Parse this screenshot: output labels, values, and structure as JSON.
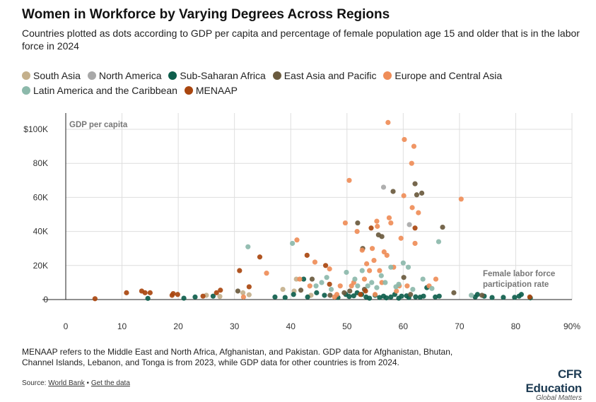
{
  "title": "Women in Workforce by Varying Degrees Across Regions",
  "subtitle": "Countries plotted as dots according to GDP per capita and percentage of female population age 15 and older that is in the labor force in 2024",
  "legend": [
    {
      "name": "South Asia",
      "color": "#c4b08c"
    },
    {
      "name": "North America",
      "color": "#a8a8a8"
    },
    {
      "name": "Sub-Saharan Africa",
      "color": "#0e5e4c"
    },
    {
      "name": "East Asia and Pacific",
      "color": "#6a5a3e"
    },
    {
      "name": "Europe and Central Asia",
      "color": "#ef8d58"
    },
    {
      "name": "Latin America and the Caribbean",
      "color": "#8cb9ab"
    },
    {
      "name": "MENAAP",
      "color": "#a9460f"
    }
  ],
  "footnote": "MENAAP refers to the Middle East and North Africa, Afghanistan, and Pakistan. GDP data for Afghanistan, Bhutan, Channel Islands, Lebanon, and Tonga is from 2023, while GDP data for other countries is from 2024.",
  "source": {
    "label": "Source:",
    "link1": "World Bank",
    "sep": "•",
    "link2": "Get the data"
  },
  "brand": {
    "name": "CFR Education",
    "tagline": "Global Matters"
  },
  "chart_data": {
    "type": "scatter",
    "ylabel": "GDP per capita",
    "xlabel": "Female labor force participation rate",
    "xlim": [
      0,
      90
    ],
    "ylim": [
      0,
      105000
    ],
    "xticks": [
      {
        "v": 0,
        "label": "0"
      },
      {
        "v": 10,
        "label": "10"
      },
      {
        "v": 20,
        "label": "20"
      },
      {
        "v": 30,
        "label": "30"
      },
      {
        "v": 40,
        "label": "40"
      },
      {
        "v": 50,
        "label": "50"
      },
      {
        "v": 60,
        "label": "60"
      },
      {
        "v": 70,
        "label": "70"
      },
      {
        "v": 80,
        "label": "80"
      },
      {
        "v": 90,
        "label": "90%"
      }
    ],
    "yticks": [
      {
        "v": 0,
        "label": "0"
      },
      {
        "v": 20000,
        "label": "20K"
      },
      {
        "v": 40000,
        "label": "40K"
      },
      {
        "v": 60000,
        "label": "60K"
      },
      {
        "v": 80000,
        "label": "80K"
      },
      {
        "v": 100000,
        "label": "$100K"
      }
    ],
    "series": [
      {
        "name": "South Asia",
        "color": "#c4b08c",
        "points": [
          [
            31.5,
            4000
          ],
          [
            32.6,
            2800
          ],
          [
            25,
            2500
          ],
          [
            27.4,
            1800
          ],
          [
            38.6,
            6000
          ],
          [
            40.6,
            5000
          ],
          [
            41,
            12000
          ],
          [
            43.6,
            2500
          ]
        ]
      },
      {
        "name": "North America",
        "color": "#a8a8a8",
        "points": [
          [
            56.5,
            66000
          ],
          [
            61.1,
            44000
          ]
        ]
      },
      {
        "name": "Sub-Saharan Africa",
        "color": "#0e5e4c",
        "points": [
          [
            14.6,
            700
          ],
          [
            21,
            800
          ],
          [
            23,
            1500
          ],
          [
            26.2,
            2000
          ],
          [
            37.2,
            1500
          ],
          [
            39,
            1200
          ],
          [
            40.5,
            3000
          ],
          [
            42.3,
            12000
          ],
          [
            43,
            1500
          ],
          [
            44.6,
            4000
          ],
          [
            46,
            2500
          ],
          [
            48.4,
            1200
          ],
          [
            49.8,
            3000
          ],
          [
            50.4,
            1800
          ],
          [
            51.2,
            2200
          ],
          [
            51.8,
            4000
          ],
          [
            52.6,
            3000
          ],
          [
            53.4,
            1500
          ],
          [
            54,
            800
          ],
          [
            55,
            2500
          ],
          [
            55.8,
            1200
          ],
          [
            56.5,
            2000
          ],
          [
            57,
            1000
          ],
          [
            57.8,
            1500
          ],
          [
            58.5,
            3000
          ],
          [
            59.2,
            800
          ],
          [
            59.7,
            2000
          ],
          [
            60.6,
            2200
          ],
          [
            61,
            1200
          ],
          [
            62.2,
            1600
          ],
          [
            63,
            1400
          ],
          [
            63.6,
            2000
          ],
          [
            64.2,
            7000
          ],
          [
            65.7,
            1500
          ],
          [
            66.4,
            2000
          ],
          [
            72.8,
            1500
          ],
          [
            73.2,
            3000
          ],
          [
            74.4,
            2000
          ],
          [
            75.8,
            1200
          ],
          [
            77.8,
            1300
          ],
          [
            79.8,
            1300
          ],
          [
            80.6,
            2000
          ],
          [
            81,
            3000
          ],
          [
            82.6,
            1000
          ]
        ]
      },
      {
        "name": "East Asia and Pacific",
        "color": "#6a5a3e",
        "points": [
          [
            30.6,
            5000
          ],
          [
            41.8,
            5500
          ],
          [
            43.8,
            12000
          ],
          [
            47,
            2500
          ],
          [
            49.5,
            4000
          ],
          [
            50.5,
            5000
          ],
          [
            51.9,
            45000
          ],
          [
            52.8,
            30000
          ],
          [
            53.1,
            6000
          ],
          [
            55.6,
            38000
          ],
          [
            56.2,
            37000
          ],
          [
            58.2,
            63500
          ],
          [
            60.1,
            13000
          ],
          [
            61.3,
            3000
          ],
          [
            62.1,
            68000
          ],
          [
            62.4,
            61500
          ],
          [
            63.3,
            62500
          ],
          [
            67,
            42500
          ],
          [
            69,
            4000
          ],
          [
            74,
            2500
          ]
        ]
      },
      {
        "name": "Europe and Central Asia",
        "color": "#ef8d58",
        "points": [
          [
            31.6,
            1500
          ],
          [
            35.7,
            15500
          ],
          [
            41.1,
            35000
          ],
          [
            41.6,
            12000
          ],
          [
            43.4,
            8000
          ],
          [
            44.3,
            22000
          ],
          [
            46.9,
            18000
          ],
          [
            47.8,
            1500
          ],
          [
            48.2,
            3000
          ],
          [
            48.8,
            8000
          ],
          [
            49.7,
            45000
          ],
          [
            50.4,
            70000
          ],
          [
            50.8,
            8000
          ],
          [
            51.2,
            10000
          ],
          [
            51.8,
            40000
          ],
          [
            52.7,
            29000
          ],
          [
            53.1,
            12000
          ],
          [
            53.5,
            21000
          ],
          [
            54,
            17000
          ],
          [
            54.5,
            30000
          ],
          [
            54.8,
            23000
          ],
          [
            55,
            3000
          ],
          [
            55.3,
            46000
          ],
          [
            55.4,
            43000
          ],
          [
            55.8,
            17000
          ],
          [
            56.2,
            10000
          ],
          [
            56.6,
            28000
          ],
          [
            57.1,
            26000
          ],
          [
            57.3,
            104000
          ],
          [
            57.5,
            48000
          ],
          [
            57.8,
            45000
          ],
          [
            58.3,
            19000
          ],
          [
            58.8,
            5000
          ],
          [
            59.3,
            8000
          ],
          [
            59.6,
            36000
          ],
          [
            60.1,
            61000
          ],
          [
            60.2,
            94000
          ],
          [
            60.7,
            8000
          ],
          [
            61.5,
            80000
          ],
          [
            61.6,
            54000
          ],
          [
            61.9,
            90000
          ],
          [
            62.1,
            33000
          ],
          [
            62.7,
            51000
          ],
          [
            64.6,
            8000
          ],
          [
            65.8,
            12000
          ],
          [
            70.3,
            59000
          ]
        ]
      },
      {
        "name": "Latin America and the Caribbean",
        "color": "#8cb9ab",
        "points": [
          [
            32.4,
            31000
          ],
          [
            40.3,
            33000
          ],
          [
            44.5,
            8000
          ],
          [
            45.5,
            10000
          ],
          [
            46.4,
            13000
          ],
          [
            47.2,
            6000
          ],
          [
            49.9,
            16000
          ],
          [
            51.4,
            12000
          ],
          [
            51.9,
            8000
          ],
          [
            52.7,
            17000
          ],
          [
            53.7,
            8000
          ],
          [
            54.4,
            10000
          ],
          [
            55.3,
            7000
          ],
          [
            56.1,
            14000
          ],
          [
            56.8,
            10000
          ],
          [
            57.8,
            19000
          ],
          [
            58.7,
            7500
          ],
          [
            59.2,
            9000
          ],
          [
            60,
            21500
          ],
          [
            60.9,
            19000
          ],
          [
            61.7,
            6000
          ],
          [
            63.5,
            12000
          ],
          [
            65.1,
            6500
          ],
          [
            66.3,
            34000
          ],
          [
            72.1,
            2500
          ]
        ]
      },
      {
        "name": "MENAAP",
        "color": "#a9460f",
        "points": [
          [
            5.2,
            500
          ],
          [
            10.8,
            4000
          ],
          [
            13.5,
            5000
          ],
          [
            14.1,
            4000
          ],
          [
            15,
            4000
          ],
          [
            18.9,
            2500
          ],
          [
            19.1,
            3500
          ],
          [
            19.9,
            3000
          ],
          [
            24.4,
            2000
          ],
          [
            26.8,
            4000
          ],
          [
            27.5,
            5500
          ],
          [
            30.9,
            17000
          ],
          [
            32.6,
            7500
          ],
          [
            34.5,
            25000
          ],
          [
            42.9,
            26000
          ],
          [
            46.2,
            20000
          ],
          [
            46.9,
            9000
          ],
          [
            52.4,
            3000
          ],
          [
            53.3,
            5000
          ],
          [
            54.3,
            42000
          ],
          [
            62.1,
            42000
          ],
          [
            82.5,
            1500
          ]
        ]
      }
    ]
  }
}
